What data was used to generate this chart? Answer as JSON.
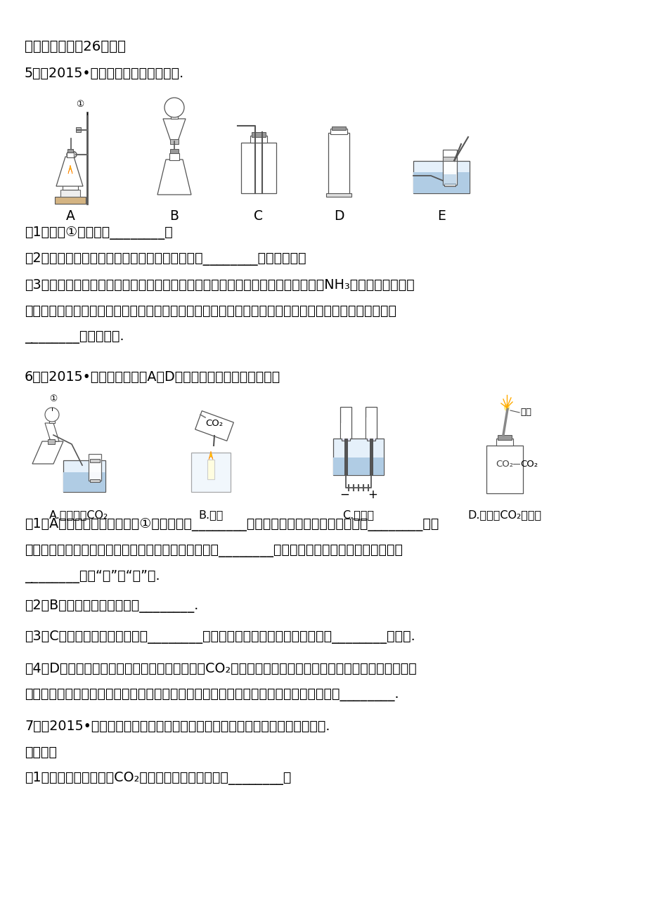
{
  "bg_color": "#ffffff",
  "title": "三、解答题（剨26小题）",
  "q5_header": "5．（2015•鄂州）根据图示回答问题.",
  "q5_labels": [
    "A",
    "B",
    "C",
    "D",
    "E"
  ],
  "q5_q1": "（1）仗器①的名称是________；",
  "q5_q2": "（2）实验室制取二氧化碳，所选择的发生装置是________（填标号）；",
  "q5_q3_line1": "（3）实验室常用加热氯化锨和熟石灰两种固体混合物的方法制取氨气．已知氨气（NH₃）在通常状况下是",
  "q5_q3_line2": "一种无色、有刺激性气味的气体，密度比空气小，极易溢于水．实验室制取并收集氨气，所选择的装置是",
  "q5_q3_line3": "________（填标号）.",
  "q6_header": "6．（2015•揭阳）根据下列A－D的四个实验，请按要求填空：",
  "q6_labelA": "A.实验室制CO₂",
  "q6_labelB": "B.灭火",
  "q6_labelC": "C.电解水",
  "q6_labelD": "D.镁条在CO₂中燃烧",
  "q6_q1_line1": "（1）A实验中，请写出标号为①的仗器名称________，实验室制取二氧化碳所用药品为________，指",
  "q6_q1_line2": "出用该装置来制取二氧化碳气的一个明显错误的地方是________，是否可以用该装置来制取氧气呢？",
  "q6_q1_line3": "________（填“是”或“否”）.",
  "q6_q2": "（2）B实验中观察到的现象是________.",
  "q6_q3": "（3）C实验中正极产生的气体是________（写化学式），由此实验得出水是由________组成的.",
  "q6_q4_line1": "（4）D实验中将镁条在空气中点燃后再放入充满CO₂的集气瓶中，发现镁条继续剧烈燃烧，发出白光，放",
  "q6_q4_line2": "热，产生一种白色固体和一种黑色固体，已知该反应为置换反应，则反应的化学方程式为________.",
  "q7_header": "7．（2015•益阳）在一次化学课上，老师提供了以下装置探究制取气体的方法.",
  "q7_sub": "请回答：",
  "q7_q1": "（1）可用于实验室制取CO₂的发生装置和收集装置是________；"
}
